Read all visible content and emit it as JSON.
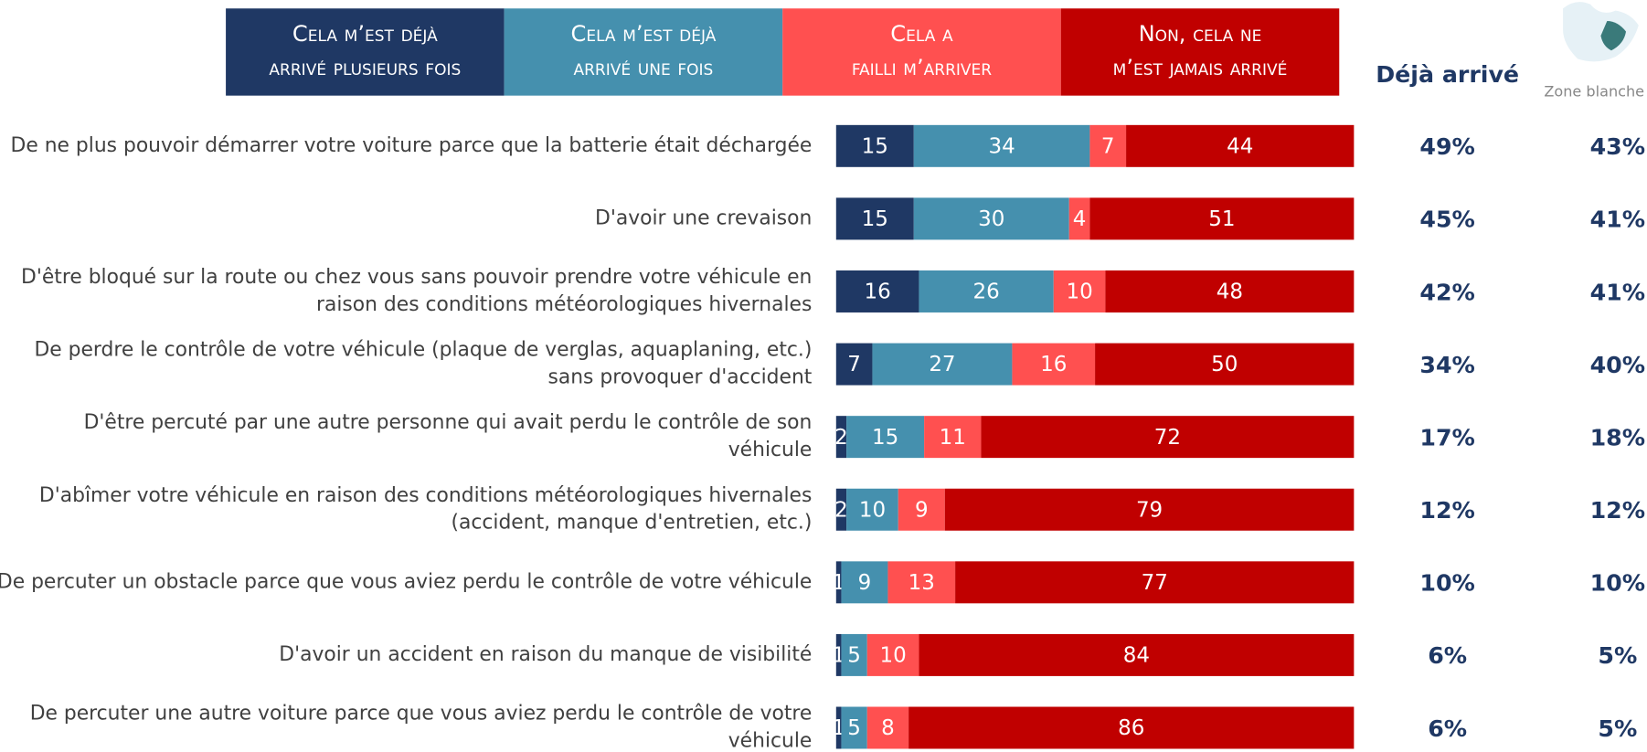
{
  "chart_data": {
    "type": "stacked-bar-horizontal",
    "categories": [
      "De ne plus pouvoir démarrer votre voiture parce que la batterie était déchargée",
      "D'avoir une crevaison",
      "D'être bloqué sur la route ou chez vous sans pouvoir prendre votre véhicule en\nraison des conditions météorologiques hivernales",
      "De perdre le contrôle de votre véhicule (plaque de verglas, aquaplaning, etc.)\nsans provoquer d'accident",
      "D'être percuté par une autre personne qui avait perdu le contrôle de son\nvéhicule",
      "D'abîmer votre véhicule en raison des conditions météorologiques hivernales\n(accident, manque d'entretien, etc.)",
      "De percuter un obstacle parce que vous aviez perdu le contrôle de votre véhicule",
      "D'avoir un accident en raison du manque de visibilité",
      "De percuter une autre voiture parce que vous aviez perdu le contrôle de votre\nvéhicule"
    ],
    "series": [
      {
        "name": "Cela m’est déjà arrivé plusieurs fois",
        "color": "#1f3864",
        "values": [
          15,
          15,
          16,
          7,
          2,
          2,
          1,
          1,
          1
        ]
      },
      {
        "name": "Cela m’est déjà arrivé une fois",
        "color": "#4590ae",
        "values": [
          34,
          30,
          26,
          27,
          15,
          10,
          9,
          5,
          5
        ]
      },
      {
        "name": "Cela a failli m’arriver",
        "color": "#ff5050",
        "values": [
          7,
          4,
          10,
          16,
          11,
          9,
          13,
          10,
          8
        ]
      },
      {
        "name": "Non, cela ne m’est jamais arrivé",
        "color": "#c00000",
        "values": [
          44,
          51,
          48,
          50,
          72,
          79,
          77,
          84,
          86
        ]
      }
    ],
    "xlim": [
      0,
      100
    ],
    "columns": [
      {
        "name": "Déjà arrivé",
        "values": [
          49,
          45,
          42,
          34,
          17,
          12,
          10,
          6,
          6
        ],
        "value_labels": [
          "49%",
          "45%",
          "42%",
          "34%",
          "17%",
          "12%",
          "10%",
          "6%",
          "6%"
        ]
      },
      {
        "name": "Zone blanche",
        "values": [
          43,
          41,
          41,
          40,
          18,
          12,
          10,
          5,
          5
        ],
        "value_labels": [
          "43%",
          "41%",
          "41%",
          "40%",
          "18%",
          "12%",
          "10%",
          "5%",
          "5%"
        ]
      }
    ]
  }
}
